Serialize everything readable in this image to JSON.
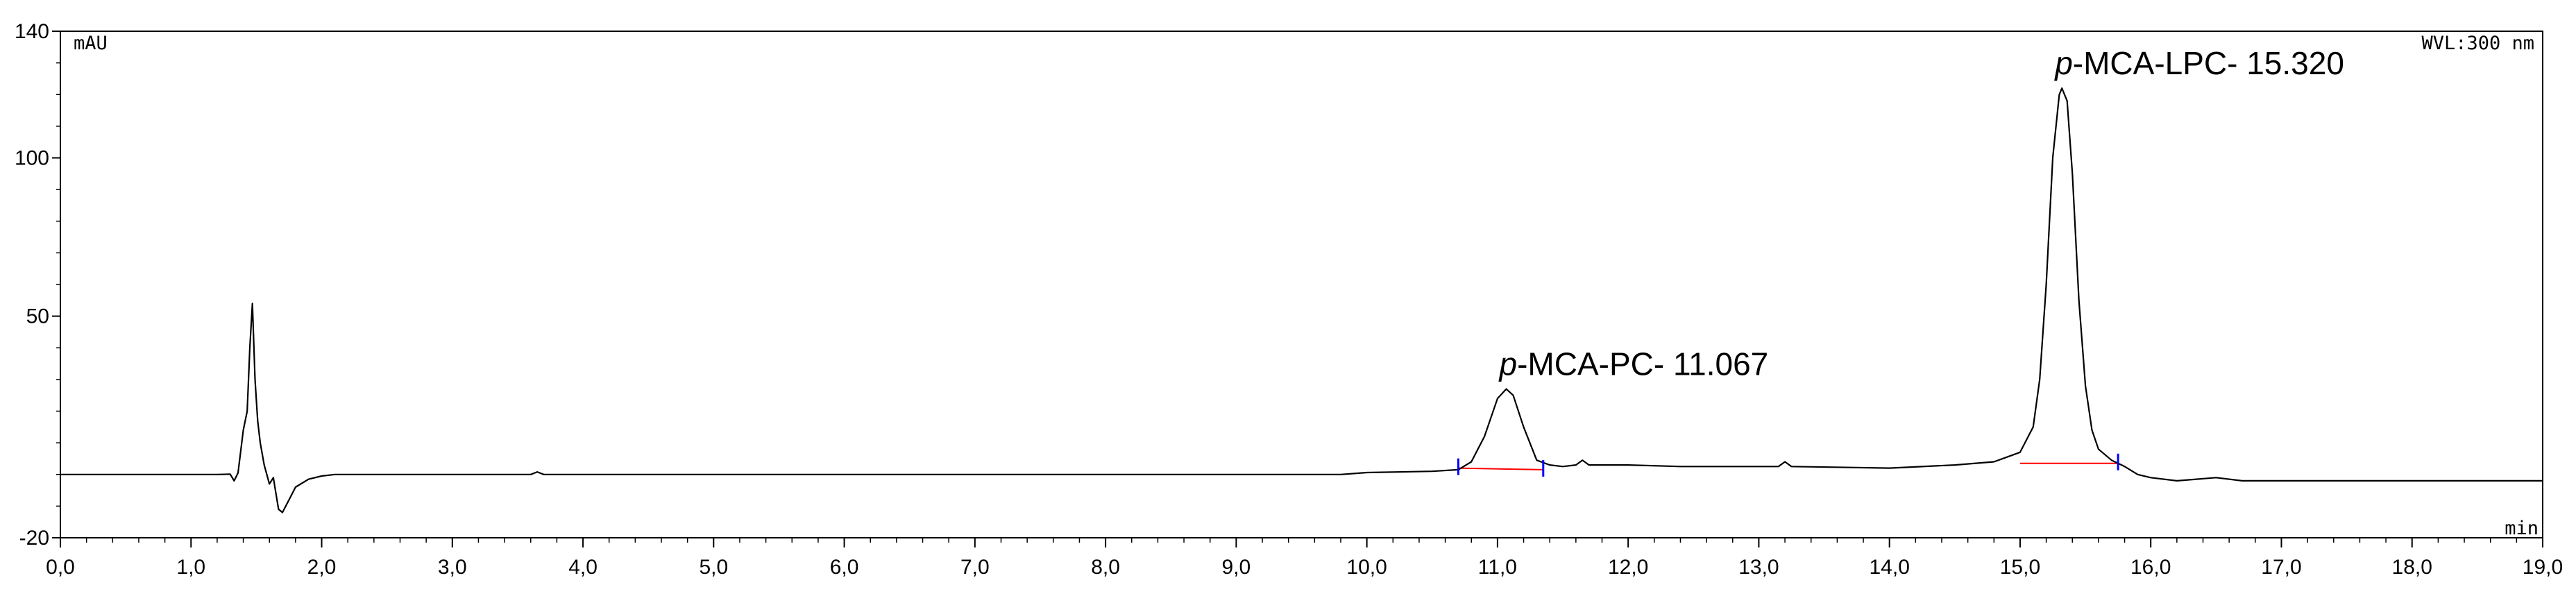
{
  "chart_data": {
    "type": "line",
    "ylabel": "mAU",
    "xlabel": "min",
    "wavelength": "WVL:300 nm",
    "xlim": [
      0,
      19
    ],
    "ylim": [
      -20,
      140
    ],
    "x_ticks": [
      0,
      1,
      2,
      3,
      4,
      5,
      6,
      7,
      8,
      9,
      10,
      11,
      12,
      13,
      14,
      15,
      16,
      17,
      18,
      19
    ],
    "x_tick_labels": [
      "0,0",
      "1,0",
      "2,0",
      "3,0",
      "4,0",
      "5,0",
      "6,0",
      "7,0",
      "8,0",
      "9,0",
      "10,0",
      "11,0",
      "12,0",
      "13,0",
      "14,0",
      "15,0",
      "16,0",
      "17,0",
      "18,0",
      "19,0"
    ],
    "y_ticks": [
      -20,
      50,
      100,
      140
    ],
    "y_tick_labels": [
      "-20",
      "50",
      "100",
      "140"
    ],
    "colors": {
      "trace": "#000000",
      "baseline": "#ff0000",
      "marker": "#0000ff",
      "axis": "#000000"
    },
    "series": [
      {
        "x": [
          0.0,
          1.2,
          1.3,
          1.33,
          1.36,
          1.4,
          1.43,
          1.45,
          1.47,
          1.49,
          1.51,
          1.53,
          1.56,
          1.6,
          1.63,
          1.65,
          1.67,
          1.7,
          1.75,
          1.8,
          1.9,
          2.0,
          2.1,
          3.6,
          3.65,
          3.7,
          3.75,
          9.8,
          10.0,
          10.5,
          10.7,
          10.8,
          10.9,
          11.0,
          11.067,
          11.12,
          11.2,
          11.3,
          11.4,
          11.5,
          11.6,
          11.65,
          11.7,
          12.0,
          12.4,
          13.15,
          13.2,
          13.25,
          14.0,
          14.5,
          14.8,
          14.9,
          15.0,
          15.1,
          15.15,
          15.2,
          15.25,
          15.3,
          15.32,
          15.36,
          15.4,
          15.45,
          15.5,
          15.55,
          15.6,
          15.7,
          15.8,
          15.9,
          16.0,
          16.2,
          16.5,
          16.7,
          17.0,
          17.5,
          18.0,
          19.0
        ],
        "y": [
          0.0,
          0.0,
          0.1,
          -2.0,
          0.5,
          14.0,
          20.0,
          40.0,
          54.0,
          30.0,
          17.0,
          10.0,
          3.0,
          -3.0,
          -1.0,
          -6.0,
          -11.0,
          -12.0,
          -8.0,
          -4.0,
          -1.5,
          -0.5,
          0.0,
          0.0,
          0.8,
          0.0,
          0.0,
          0.0,
          0.6,
          1.0,
          1.5,
          4.0,
          12.0,
          24.0,
          27.0,
          25.0,
          15.0,
          4.5,
          3.0,
          2.5,
          3.0,
          4.5,
          3.0,
          3.0,
          2.5,
          2.5,
          4.0,
          2.5,
          2.0,
          3.0,
          4.0,
          5.5,
          7.0,
          15.0,
          30.0,
          60.0,
          100.0,
          120.0,
          122.0,
          118.0,
          95.0,
          55.0,
          28.0,
          14.0,
          8.0,
          4.5,
          2.5,
          0.0,
          -1.0,
          -2.0,
          -1.0,
          -2.0,
          -2.0,
          -2.0,
          -2.0,
          -2.0
        ]
      }
    ],
    "integration_baselines": [
      {
        "x": [
          10.7,
          11.35
        ],
        "y": [
          2.0,
          1.5
        ]
      },
      {
        "x": [
          15.0,
          15.75
        ],
        "y": [
          3.5,
          3.5
        ]
      }
    ],
    "peak_markers": [
      {
        "x": 10.7,
        "y": 2.0
      },
      {
        "x": 11.35,
        "y": 1.5
      },
      {
        "x": 15.75,
        "y": 3.5
      }
    ],
    "annotations": [
      {
        "prefix": "p",
        "text": "-MCA-PC- 11.067",
        "x": 11.067,
        "y": 27.0
      },
      {
        "prefix": "p",
        "text": "-MCA-LPC- 15.320",
        "x": 15.32,
        "y": 122.0
      }
    ]
  }
}
